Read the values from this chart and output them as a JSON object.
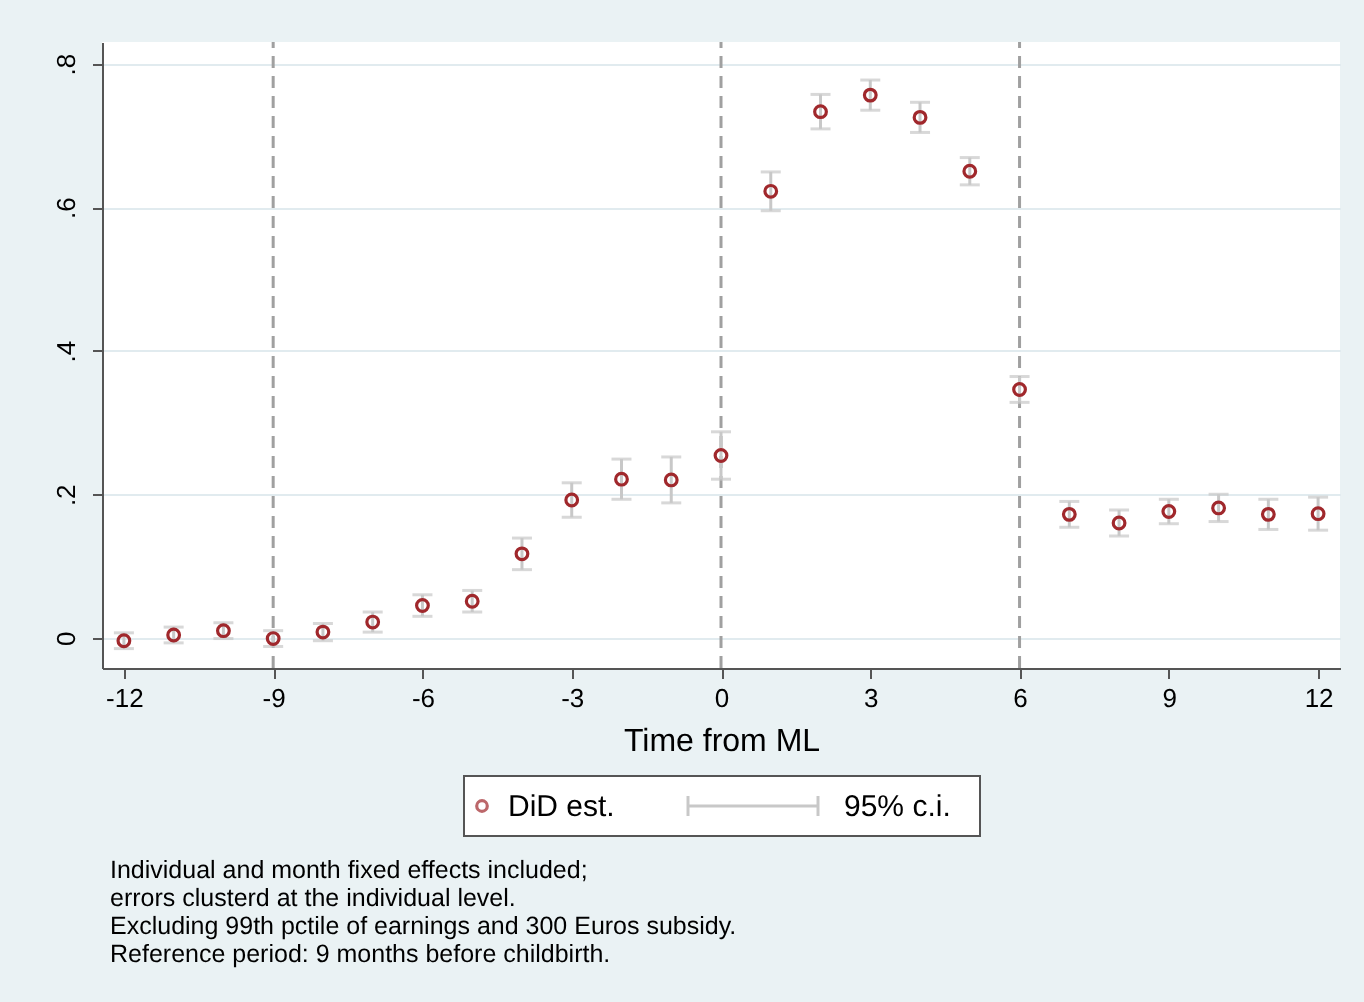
{
  "chart_data": {
    "type": "scatter",
    "xlabel": "Time from ML",
    "x": [
      -12,
      -11,
      -10,
      -9,
      -8,
      -7,
      -6,
      -5,
      -4,
      -3,
      -2,
      -1,
      0,
      1,
      2,
      3,
      4,
      5,
      6,
      7,
      8,
      9,
      10,
      11,
      12
    ],
    "series": [
      {
        "name": "DiD est.",
        "color": "#a0282c",
        "values": [
          -0.004,
          0.004,
          0.01,
          -0.001,
          0.008,
          0.022,
          0.045,
          0.051,
          0.117,
          0.192,
          0.221,
          0.22,
          0.254,
          0.622,
          0.733,
          0.756,
          0.725,
          0.65,
          0.346,
          0.172,
          0.16,
          0.176,
          0.181,
          0.172,
          0.173
        ],
        "errors": [
          0.011,
          0.011,
          0.011,
          0.011,
          0.012,
          0.014,
          0.015,
          0.015,
          0.022,
          0.024,
          0.028,
          0.032,
          0.033,
          0.027,
          0.024,
          0.021,
          0.021,
          0.019,
          0.018,
          0.018,
          0.018,
          0.017,
          0.019,
          0.021,
          0.023
        ]
      }
    ],
    "marker": "circle",
    "grid": "y",
    "legend": "bottom",
    "xlim": [
      -12.44,
      12.44
    ],
    "xticks": [
      -12,
      -9,
      -6,
      -3,
      0,
      3,
      6,
      9,
      12
    ],
    "ylim": [
      -0.042,
      0.83
    ],
    "yticks": [
      0,
      {
        "value": 0.2,
        "label": ".2"
      },
      {
        "value": 0.4,
        "label": ".4"
      },
      {
        "value": 0.6,
        "label": ".6"
      },
      {
        "value": 0.8,
        "label": ".8"
      }
    ],
    "ref_lines": [
      {
        "axis": "x",
        "value": -9,
        "color": "#a0a0a0",
        "line_style": "dashed"
      },
      {
        "axis": "x",
        "value": 0,
        "color": "#a0a0a0",
        "line_style": "dashed"
      },
      {
        "axis": "x",
        "value": 6,
        "color": "#a0a0a0",
        "line_style": "dashed"
      }
    ],
    "annotations": [
      "95% c.i.",
      "Individual and month fixed effects included;",
      "errors clusterd at the individual level.",
      "Excluding 99th pctile of earnings and 300 Euros subsidy.",
      "Reference period: 9 months before childbirth."
    ]
  }
}
